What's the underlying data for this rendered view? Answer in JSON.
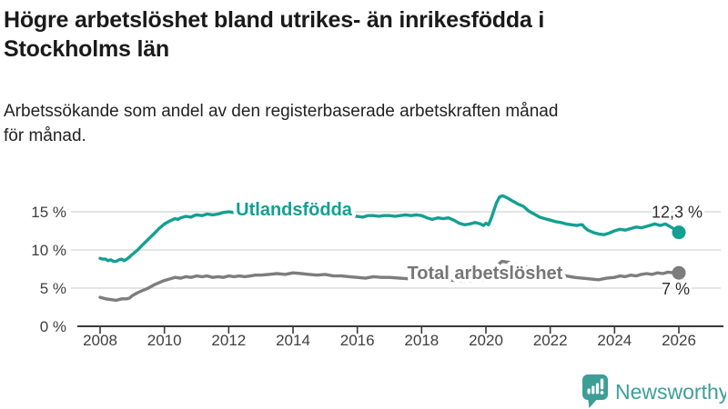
{
  "header": {
    "title_line1": "Högre arbetslöshet bland utrikes- än inrikesfödda i",
    "title_line2": "Stockholms län",
    "subtitle_line1": "Arbetssökande som andel av den registerbaserade arbetskraften månad",
    "subtitle_line2": "för månad."
  },
  "colors": {
    "accent_teal": "#13a092",
    "gray_line": "#7d7d7d",
    "gray_label": "#767676",
    "gridline": "#dcdcdc",
    "axis": "#3a3a3a",
    "tick_text": "#3f3f3f",
    "value_label": "#2e2e2e",
    "logo_teal": "#3d9e98"
  },
  "branding": {
    "logo_text": "Newsworthy",
    "logo_icon": "bar-chart-speech-bubble-icon"
  },
  "chart_data": {
    "type": "line",
    "x_unit": "year (monthly observations)",
    "y_unit": "percent of labour force",
    "xlim": [
      2007.1,
      2027.3
    ],
    "ylim": [
      0,
      20.1
    ],
    "grid": "horizontal",
    "yticks": [
      {
        "v": 0,
        "label": "0 %"
      },
      {
        "v": 5,
        "label": "5 %"
      },
      {
        "v": 10,
        "label": "10 %"
      },
      {
        "v": 15,
        "label": "15 %"
      }
    ],
    "xticks": [
      {
        "v": 2008,
        "label": "2008"
      },
      {
        "v": 2010,
        "label": "2010"
      },
      {
        "v": 2012,
        "label": "2012"
      },
      {
        "v": 2014,
        "label": "2014"
      },
      {
        "v": 2016,
        "label": "2016"
      },
      {
        "v": 2018,
        "label": "2018"
      },
      {
        "v": 2020,
        "label": "2020"
      },
      {
        "v": 2022,
        "label": "2022"
      },
      {
        "v": 2024,
        "label": "2024"
      },
      {
        "v": 2026,
        "label": "2026"
      }
    ],
    "series": [
      {
        "id": "utlandsfodda",
        "name": "Utlandsfödda",
        "color": "#13a092",
        "end_label": "12,3 %",
        "end_value": 12.3,
        "label_pos": {
          "x": 2014.03,
          "y": 15.35
        },
        "points": [
          [
            2008.0,
            8.9
          ],
          [
            2008.08,
            8.8
          ],
          [
            2008.17,
            8.8
          ],
          [
            2008.25,
            8.6
          ],
          [
            2008.33,
            8.7
          ],
          [
            2008.42,
            8.5
          ],
          [
            2008.5,
            8.5
          ],
          [
            2008.58,
            8.7
          ],
          [
            2008.67,
            8.8
          ],
          [
            2008.75,
            8.6
          ],
          [
            2008.83,
            8.8
          ],
          [
            2008.92,
            9.1
          ],
          [
            2009.0,
            9.4
          ],
          [
            2009.17,
            10.0
          ],
          [
            2009.33,
            10.7
          ],
          [
            2009.5,
            11.4
          ],
          [
            2009.67,
            12.1
          ],
          [
            2009.83,
            12.8
          ],
          [
            2010.0,
            13.4
          ],
          [
            2010.17,
            13.8
          ],
          [
            2010.33,
            14.1
          ],
          [
            2010.42,
            14.0
          ],
          [
            2010.5,
            14.2
          ],
          [
            2010.67,
            14.4
          ],
          [
            2010.83,
            14.3
          ],
          [
            2010.92,
            14.5
          ],
          [
            2011.0,
            14.6
          ],
          [
            2011.17,
            14.5
          ],
          [
            2011.33,
            14.7
          ],
          [
            2011.5,
            14.6
          ],
          [
            2011.67,
            14.7
          ],
          [
            2011.83,
            14.9
          ],
          [
            2012.0,
            15.0
          ],
          [
            2012.17,
            14.9
          ],
          [
            2012.33,
            15.1
          ],
          [
            2012.5,
            15.0
          ],
          [
            2012.75,
            15.0
          ],
          [
            2013.0,
            14.9
          ],
          [
            2013.5,
            14.9
          ],
          [
            2014.0,
            14.8
          ],
          [
            2014.5,
            14.7
          ],
          [
            2015.0,
            14.6
          ],
          [
            2015.5,
            14.5
          ],
          [
            2015.83,
            14.4
          ],
          [
            2016.0,
            14.4
          ],
          [
            2016.17,
            14.3
          ],
          [
            2016.33,
            14.5
          ],
          [
            2016.5,
            14.5
          ],
          [
            2016.67,
            14.4
          ],
          [
            2016.83,
            14.5
          ],
          [
            2017.0,
            14.5
          ],
          [
            2017.17,
            14.4
          ],
          [
            2017.33,
            14.5
          ],
          [
            2017.5,
            14.6
          ],
          [
            2017.67,
            14.5
          ],
          [
            2017.83,
            14.6
          ],
          [
            2018.0,
            14.5
          ],
          [
            2018.17,
            14.2
          ],
          [
            2018.33,
            14.0
          ],
          [
            2018.5,
            14.2
          ],
          [
            2018.67,
            14.1
          ],
          [
            2018.83,
            14.2
          ],
          [
            2019.0,
            13.9
          ],
          [
            2019.17,
            13.5
          ],
          [
            2019.33,
            13.3
          ],
          [
            2019.5,
            13.4
          ],
          [
            2019.67,
            13.6
          ],
          [
            2019.83,
            13.4
          ],
          [
            2019.92,
            13.2
          ],
          [
            2020.0,
            13.5
          ],
          [
            2020.08,
            13.3
          ],
          [
            2020.17,
            14.2
          ],
          [
            2020.25,
            15.2
          ],
          [
            2020.33,
            16.2
          ],
          [
            2020.42,
            16.9
          ],
          [
            2020.5,
            17.1
          ],
          [
            2020.58,
            17.0
          ],
          [
            2020.67,
            16.8
          ],
          [
            2020.75,
            16.6
          ],
          [
            2020.83,
            16.4
          ],
          [
            2020.92,
            16.2
          ],
          [
            2021.0,
            16.0
          ],
          [
            2021.17,
            15.7
          ],
          [
            2021.33,
            15.1
          ],
          [
            2021.5,
            14.7
          ],
          [
            2021.67,
            14.3
          ],
          [
            2021.83,
            14.1
          ],
          [
            2022.0,
            13.9
          ],
          [
            2022.17,
            13.7
          ],
          [
            2022.33,
            13.6
          ],
          [
            2022.5,
            13.4
          ],
          [
            2022.67,
            13.3
          ],
          [
            2022.83,
            13.2
          ],
          [
            2022.92,
            13.3
          ],
          [
            2023.0,
            13.3
          ],
          [
            2023.08,
            12.9
          ],
          [
            2023.17,
            12.6
          ],
          [
            2023.33,
            12.3
          ],
          [
            2023.5,
            12.1
          ],
          [
            2023.67,
            12.0
          ],
          [
            2023.83,
            12.2
          ],
          [
            2024.0,
            12.5
          ],
          [
            2024.17,
            12.7
          ],
          [
            2024.33,
            12.6
          ],
          [
            2024.5,
            12.8
          ],
          [
            2024.67,
            13.0
          ],
          [
            2024.83,
            12.9
          ],
          [
            2025.0,
            13.1
          ],
          [
            2025.17,
            13.3
          ],
          [
            2025.25,
            13.4
          ],
          [
            2025.42,
            13.2
          ],
          [
            2025.58,
            13.4
          ],
          [
            2025.75,
            13.0
          ],
          [
            2025.92,
            12.6
          ],
          [
            2026.0,
            12.3
          ]
        ]
      },
      {
        "id": "total",
        "name": "Total arbetslöshet",
        "color": "#7d7d7d",
        "end_label": "7 %",
        "end_value": 7.0,
        "label_pos": {
          "x": 2019.97,
          "y": 7.0
        },
        "points": [
          [
            2008.0,
            3.8
          ],
          [
            2008.17,
            3.6
          ],
          [
            2008.33,
            3.5
          ],
          [
            2008.5,
            3.4
          ],
          [
            2008.67,
            3.6
          ],
          [
            2008.83,
            3.6
          ],
          [
            2008.92,
            3.7
          ],
          [
            2009.0,
            4.0
          ],
          [
            2009.17,
            4.4
          ],
          [
            2009.33,
            4.7
          ],
          [
            2009.5,
            5.0
          ],
          [
            2009.67,
            5.4
          ],
          [
            2009.83,
            5.7
          ],
          [
            2010.0,
            6.0
          ],
          [
            2010.17,
            6.2
          ],
          [
            2010.33,
            6.4
          ],
          [
            2010.5,
            6.3
          ],
          [
            2010.67,
            6.5
          ],
          [
            2010.83,
            6.4
          ],
          [
            2011.0,
            6.6
          ],
          [
            2011.17,
            6.5
          ],
          [
            2011.33,
            6.6
          ],
          [
            2011.5,
            6.4
          ],
          [
            2011.67,
            6.5
          ],
          [
            2011.83,
            6.4
          ],
          [
            2012.0,
            6.6
          ],
          [
            2012.17,
            6.5
          ],
          [
            2012.33,
            6.6
          ],
          [
            2012.5,
            6.5
          ],
          [
            2012.67,
            6.6
          ],
          [
            2012.83,
            6.7
          ],
          [
            2013.0,
            6.7
          ],
          [
            2013.25,
            6.8
          ],
          [
            2013.5,
            6.9
          ],
          [
            2013.75,
            6.8
          ],
          [
            2014.0,
            7.0
          ],
          [
            2014.25,
            6.9
          ],
          [
            2014.5,
            6.8
          ],
          [
            2014.75,
            6.7
          ],
          [
            2015.0,
            6.8
          ],
          [
            2015.25,
            6.6
          ],
          [
            2015.5,
            6.6
          ],
          [
            2015.75,
            6.5
          ],
          [
            2016.0,
            6.4
          ],
          [
            2016.25,
            6.3
          ],
          [
            2016.5,
            6.5
          ],
          [
            2016.75,
            6.4
          ],
          [
            2017.0,
            6.4
          ],
          [
            2017.33,
            6.3
          ],
          [
            2017.67,
            6.2
          ],
          [
            2018.0,
            6.2
          ],
          [
            2018.33,
            6.1
          ],
          [
            2018.67,
            6.1
          ],
          [
            2019.0,
            6.0
          ],
          [
            2019.33,
            5.9
          ],
          [
            2019.67,
            6.0
          ],
          [
            2019.92,
            6.1
          ],
          [
            2020.0,
            6.2
          ],
          [
            2020.17,
            6.8
          ],
          [
            2020.33,
            7.9
          ],
          [
            2020.5,
            8.5
          ],
          [
            2020.67,
            8.4
          ],
          [
            2020.83,
            8.2
          ],
          [
            2021.0,
            8.1
          ],
          [
            2021.25,
            7.8
          ],
          [
            2021.5,
            7.5
          ],
          [
            2021.75,
            7.2
          ],
          [
            2022.0,
            7.0
          ],
          [
            2022.25,
            6.8
          ],
          [
            2022.5,
            6.6
          ],
          [
            2022.75,
            6.4
          ],
          [
            2023.0,
            6.3
          ],
          [
            2023.25,
            6.2
          ],
          [
            2023.5,
            6.1
          ],
          [
            2023.75,
            6.3
          ],
          [
            2024.0,
            6.4
          ],
          [
            2024.17,
            6.6
          ],
          [
            2024.33,
            6.5
          ],
          [
            2024.5,
            6.7
          ],
          [
            2024.67,
            6.6
          ],
          [
            2024.83,
            6.8
          ],
          [
            2025.0,
            6.9
          ],
          [
            2025.17,
            6.8
          ],
          [
            2025.33,
            7.0
          ],
          [
            2025.5,
            6.9
          ],
          [
            2025.67,
            7.1
          ],
          [
            2025.83,
            7.0
          ],
          [
            2026.0,
            7.0
          ]
        ]
      }
    ]
  }
}
